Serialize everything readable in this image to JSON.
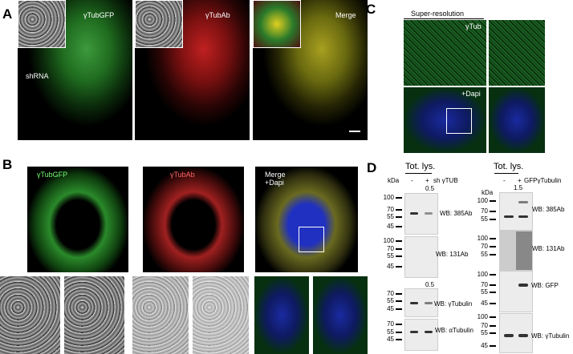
{
  "panels": {
    "A": "A",
    "B": "B",
    "C": "C",
    "D": "D"
  },
  "panel_a": {
    "ch1": "γTubGFP",
    "ch2": "γTubAb",
    "ch3": "Merge",
    "shrna": "shRNA"
  },
  "panel_b": {
    "ch1": "γTubGFP",
    "ch2": "γTubAb",
    "ch3_l1": "Merge",
    "ch3_l2": "+Dapi"
  },
  "panel_c": {
    "title": "Super-resolution",
    "top": "γTub",
    "bottom": "+Dapi"
  },
  "panel_d": {
    "left": {
      "header": "Tot. lys.",
      "kda": "kDa",
      "minus": "-",
      "plus": "+",
      "condition": "sh γTUB",
      "blots": [
        {
          "ratio": "0.5",
          "label": "WB: 385Ab",
          "markers": [
            "100",
            "70",
            "55",
            "45"
          ]
        },
        {
          "ratio": "",
          "label": "WB: 131Ab",
          "markers": [
            "100",
            "70",
            "55",
            "45"
          ]
        },
        {
          "ratio": "0.5",
          "label": "WB: γTubulin",
          "markers": [
            "70",
            "55",
            "45"
          ]
        },
        {
          "ratio": "",
          "label": "WB: αTubulin",
          "markers": [
            "70",
            "55",
            "45"
          ]
        }
      ]
    },
    "right": {
      "header": "Tot. lys.",
      "kda": "kDa",
      "minus": "-",
      "plus": "+",
      "condition": "GFPγTubulin",
      "blots": [
        {
          "ratio": "1.5",
          "label": "WB: 385Ab",
          "markers": [
            "100",
            "70",
            "55"
          ]
        },
        {
          "ratio": "",
          "label": "WB: 131Ab",
          "markers": [
            "100",
            "70",
            "55"
          ]
        },
        {
          "ratio": "",
          "label": "WB: GFP",
          "markers": [
            "100",
            "70",
            "55",
            "45"
          ]
        },
        {
          "ratio": "",
          "label": "WB: γTubulin",
          "markers": [
            "100",
            "70",
            "55",
            "45"
          ]
        }
      ]
    }
  }
}
